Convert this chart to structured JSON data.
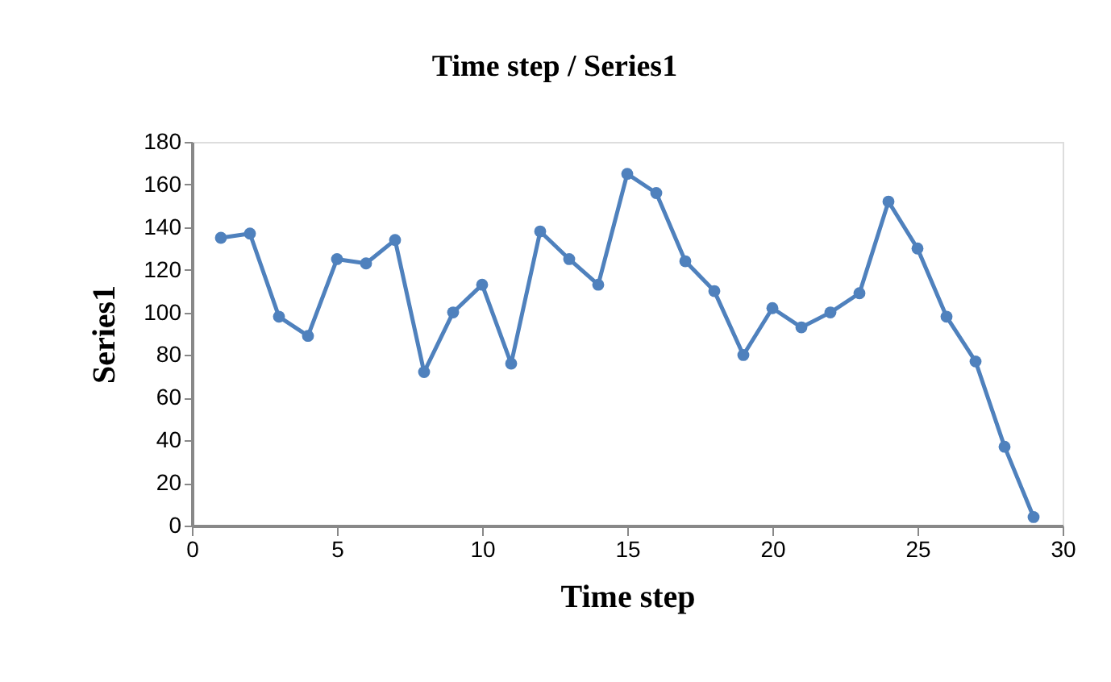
{
  "chart_data": {
    "type": "line",
    "title": "Time step / Series1",
    "xlabel": "Time step",
    "ylabel": "Series1",
    "x": [
      1,
      2,
      3,
      4,
      5,
      6,
      7,
      8,
      9,
      10,
      11,
      12,
      13,
      14,
      15,
      16,
      17,
      18,
      19,
      20,
      21,
      22,
      23,
      24,
      25,
      26,
      27,
      28,
      29
    ],
    "series": [
      {
        "color": "#4f81bd",
        "values": [
          135,
          137,
          98,
          89,
          125,
          123,
          134,
          72,
          100,
          113,
          76,
          138,
          125,
          113,
          165,
          156,
          124,
          110,
          80,
          102,
          93,
          100,
          109,
          152,
          130,
          98,
          77,
          37,
          4
        ]
      }
    ],
    "xlim": [
      0,
      30
    ],
    "xticks": [
      0,
      5,
      10,
      15,
      20,
      25,
      30
    ],
    "ylim": [
      0,
      180
    ],
    "yticks": [
      0,
      20,
      40,
      60,
      80,
      100,
      120,
      140,
      160,
      180
    ],
    "grid": false,
    "legend": false,
    "marker": "circle",
    "line_style": "solid"
  }
}
